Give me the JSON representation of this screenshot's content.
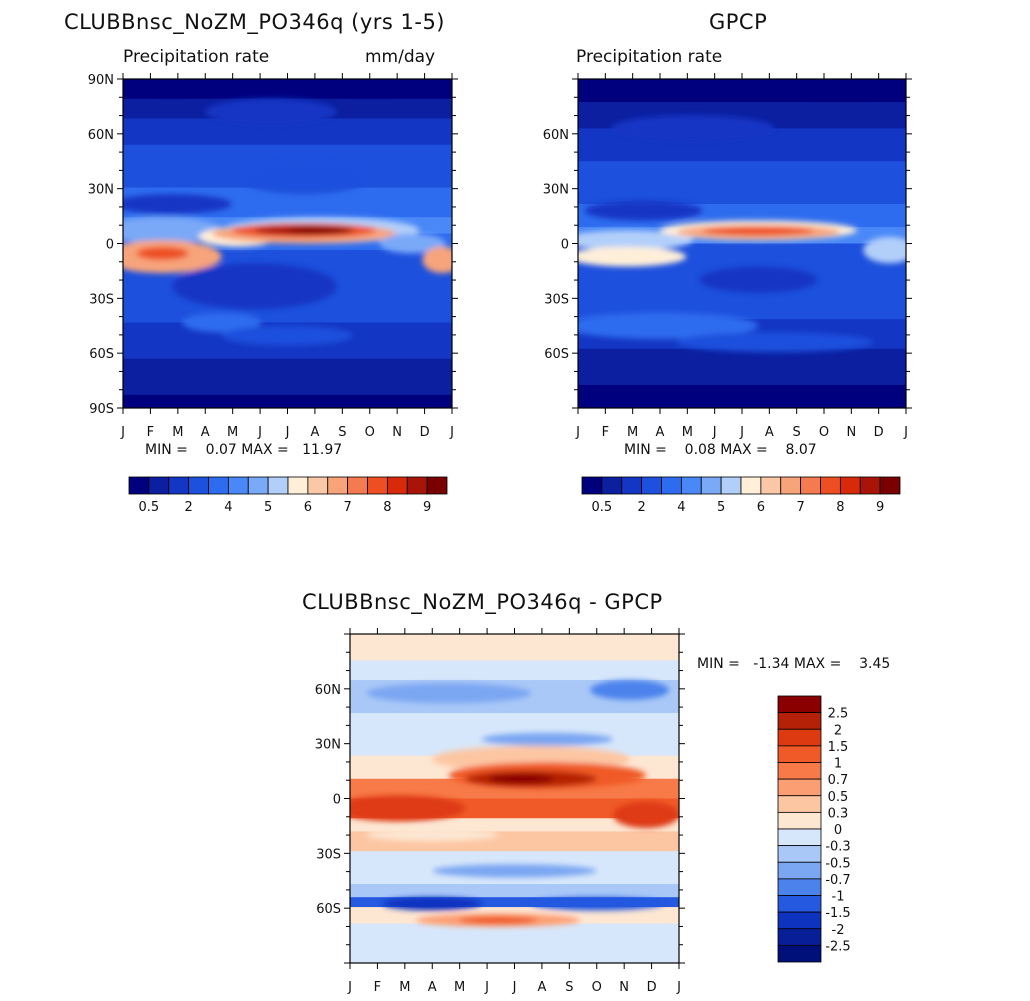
{
  "chart_data": [
    {
      "type": "heatmap",
      "title": "CLUBBnsc_NoZM_PO346q (yrs 1-5)",
      "subtitle_left": "Precipitation rate",
      "subtitle_right": "mm/day",
      "xlabels": [
        "J",
        "F",
        "M",
        "A",
        "M",
        "J",
        "J",
        "A",
        "S",
        "O",
        "N",
        "D",
        "J"
      ],
      "ylabels": [
        "90N",
        "60N",
        "30N",
        "0",
        "30S",
        "60S",
        "90S"
      ],
      "stats": "MIN =    0.07 MAX =   11.97",
      "min": 0.07,
      "max": 11.97,
      "colorbar_labels": [
        "0.5",
        "2",
        "4",
        "5",
        "6",
        "7",
        "8",
        "9"
      ]
    },
    {
      "type": "heatmap",
      "title": "GPCP",
      "subtitle_left": "Precipitation rate",
      "xlabels": [
        "J",
        "F",
        "M",
        "A",
        "M",
        "J",
        "J",
        "A",
        "S",
        "O",
        "N",
        "D",
        "J"
      ],
      "ylabels": [
        "60N",
        "30N",
        "0",
        "30S",
        "60S"
      ],
      "stats": "MIN =    0.08 MAX =    8.07",
      "min": 0.08,
      "max": 8.07,
      "colorbar_labels": [
        "0.5",
        "2",
        "4",
        "5",
        "6",
        "7",
        "8",
        "9"
      ]
    },
    {
      "type": "heatmap",
      "title": "CLUBBnsc_NoZM_PO346q - GPCP",
      "xlabels": [
        "J",
        "F",
        "M",
        "A",
        "M",
        "J",
        "J",
        "A",
        "S",
        "O",
        "N",
        "D",
        "J"
      ],
      "ylabels": [
        "60N",
        "30N",
        "0",
        "30S",
        "60S"
      ],
      "stats": "MIN =   -1.34 MAX =    3.45",
      "min": -1.34,
      "max": 3.45,
      "colorbar_labels": [
        "2.5",
        "2",
        "1.5",
        "1",
        "0.7",
        "0.5",
        "0.3",
        "0",
        "-0.3",
        "-0.5",
        "-0.7",
        "-1",
        "-1.5",
        "-2",
        "-2.5"
      ]
    }
  ],
  "colors": {
    "precip": [
      "#00007f",
      "#0b1fa0",
      "#1436c4",
      "#1d50dd",
      "#2e6cef",
      "#4a88f7",
      "#7aa9f8",
      "#b2cffa",
      "#ffefd9",
      "#fbc8a7",
      "#f7a47b",
      "#f47a4f",
      "#ee4f22",
      "#d82a0a",
      "#a81508",
      "#7a0000"
    ],
    "diff": [
      "#8a0000",
      "#b52106",
      "#de3a12",
      "#f05a28",
      "#f87a48",
      "#fb9e73",
      "#fdc6a3",
      "#fde6d2",
      "#d7e7fb",
      "#a9c8f7",
      "#7aa6f2",
      "#4b82ec",
      "#2459e0",
      "#0e33bf",
      "#071e98",
      "#00107a"
    ]
  }
}
